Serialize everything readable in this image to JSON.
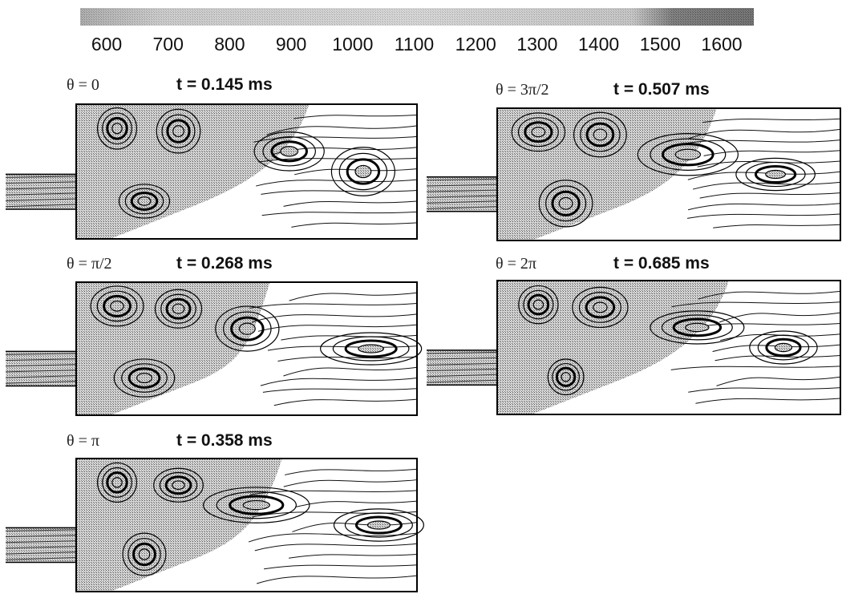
{
  "colorbar": {
    "ticks": [
      "600",
      "700",
      "800",
      "900",
      "1000",
      "1100",
      "1200",
      "1300",
      "1400",
      "1500",
      "1600"
    ]
  },
  "panels": [
    {
      "angle": "θ = 0",
      "time": "t = 0.145 ms"
    },
    {
      "angle": "θ = π/2",
      "time": "t = 0.268 ms"
    },
    {
      "angle": "θ = π",
      "time": "t = 0.358 ms"
    },
    {
      "angle": "θ = 3π/2",
      "time": "t = 0.507 ms"
    },
    {
      "angle": "θ = 2π",
      "time": "t = 0.685 ms"
    }
  ]
}
